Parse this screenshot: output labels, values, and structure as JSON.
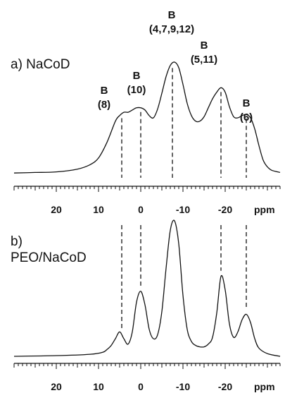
{
  "chart_data": [
    {
      "type": "line",
      "title": "a) NaCoD",
      "xlabel": "ppm",
      "ylabel": "",
      "xlim": [
        30,
        -33
      ],
      "x_reversed": true,
      "x_ticks": [
        20,
        10,
        0,
        -10,
        -20
      ],
      "x_tick_labels": [
        "20",
        "10",
        "0",
        "-10",
        "-20"
      ],
      "annotations": [
        {
          "line1": "B",
          "line2": "(8)",
          "ppm": 4.5
        },
        {
          "line1": "B",
          "line2": "(10)",
          "ppm": 0
        },
        {
          "line1": "B",
          "line2": "(4,7,9,12)",
          "ppm": -7.5
        },
        {
          "line1": "B",
          "line2": "(5,11)",
          "ppm": -19
        },
        {
          "line1": "B",
          "line2": "(6)",
          "ppm": -25
        }
      ],
      "series": [
        {
          "x": [
            30,
            25,
            20,
            15,
            12,
            10,
            8,
            6,
            5,
            4,
            3,
            2,
            1,
            0,
            -1,
            -2,
            -3,
            -4,
            -5,
            -6,
            -7,
            -8,
            -9,
            -10,
            -11,
            -12,
            -13,
            -14,
            -15,
            -16,
            -17,
            -18,
            -19,
            -20,
            -21,
            -22,
            -23,
            -24,
            -25,
            -26,
            -27,
            -28,
            -29,
            -30,
            -31,
            -33
          ],
          "y": [
            0.005,
            0.01,
            0.015,
            0.04,
            0.08,
            0.14,
            0.28,
            0.47,
            0.52,
            0.55,
            0.55,
            0.57,
            0.59,
            0.59,
            0.57,
            0.52,
            0.5,
            0.58,
            0.72,
            0.87,
            0.97,
            1.0,
            0.95,
            0.8,
            0.63,
            0.52,
            0.47,
            0.47,
            0.51,
            0.59,
            0.67,
            0.73,
            0.77,
            0.73,
            0.6,
            0.51,
            0.5,
            0.52,
            0.53,
            0.5,
            0.4,
            0.25,
            0.12,
            0.06,
            0.03,
            0.01
          ]
        }
      ]
    },
    {
      "type": "line",
      "title": "b) PEO/NaCoD",
      "xlabel": "ppm",
      "ylabel": "",
      "xlim": [
        30,
        -33
      ],
      "x_reversed": true,
      "x_ticks": [
        20,
        10,
        0,
        -10,
        -20
      ],
      "x_tick_labels": [
        "20",
        "10",
        "0",
        "-10",
        "-20"
      ],
      "series": [
        {
          "x": [
            30,
            20,
            12,
            9,
            8,
            7,
            6,
            5,
            4,
            3,
            2,
            1,
            0,
            -1,
            -2,
            -3,
            -4,
            -5,
            -6,
            -7,
            -8,
            -9,
            -10,
            -11,
            -12,
            -13,
            -14,
            -15,
            -16,
            -17,
            -18,
            -19,
            -20,
            -21,
            -22,
            -23,
            -24,
            -25,
            -26,
            -27,
            -28,
            -30,
            -33
          ],
          "y": [
            0.0,
            0.005,
            0.015,
            0.03,
            0.05,
            0.08,
            0.13,
            0.18,
            0.13,
            0.09,
            0.18,
            0.4,
            0.48,
            0.38,
            0.2,
            0.13,
            0.16,
            0.33,
            0.65,
            0.93,
            1.0,
            0.83,
            0.45,
            0.2,
            0.11,
            0.08,
            0.07,
            0.07,
            0.09,
            0.14,
            0.32,
            0.59,
            0.49,
            0.24,
            0.14,
            0.18,
            0.27,
            0.31,
            0.25,
            0.13,
            0.06,
            0.02,
            0.0
          ]
        }
      ]
    }
  ]
}
